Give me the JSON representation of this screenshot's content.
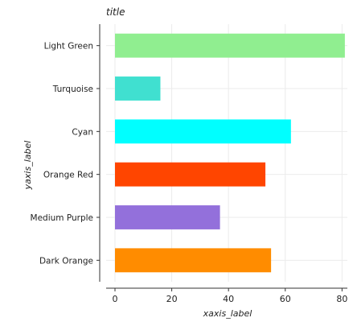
{
  "chart_data": {
    "type": "bar",
    "orientation": "horizontal",
    "title": "title",
    "xlabel": "xaxis_label",
    "ylabel": "yaxis_label",
    "categories": [
      "Dark Orange",
      "Medium Purple",
      "Orange Red",
      "Cyan",
      "Turquoise",
      "Light Green"
    ],
    "values": [
      55,
      37,
      53,
      62,
      16,
      81
    ],
    "colors": [
      "#ff8c00",
      "#9370db",
      "#ff4500",
      "#00ffff",
      "#40e0d0",
      "#90ee90"
    ],
    "xlim": [
      0,
      85
    ],
    "xticks": [
      0,
      20,
      40,
      60,
      80
    ],
    "grid": true
  }
}
